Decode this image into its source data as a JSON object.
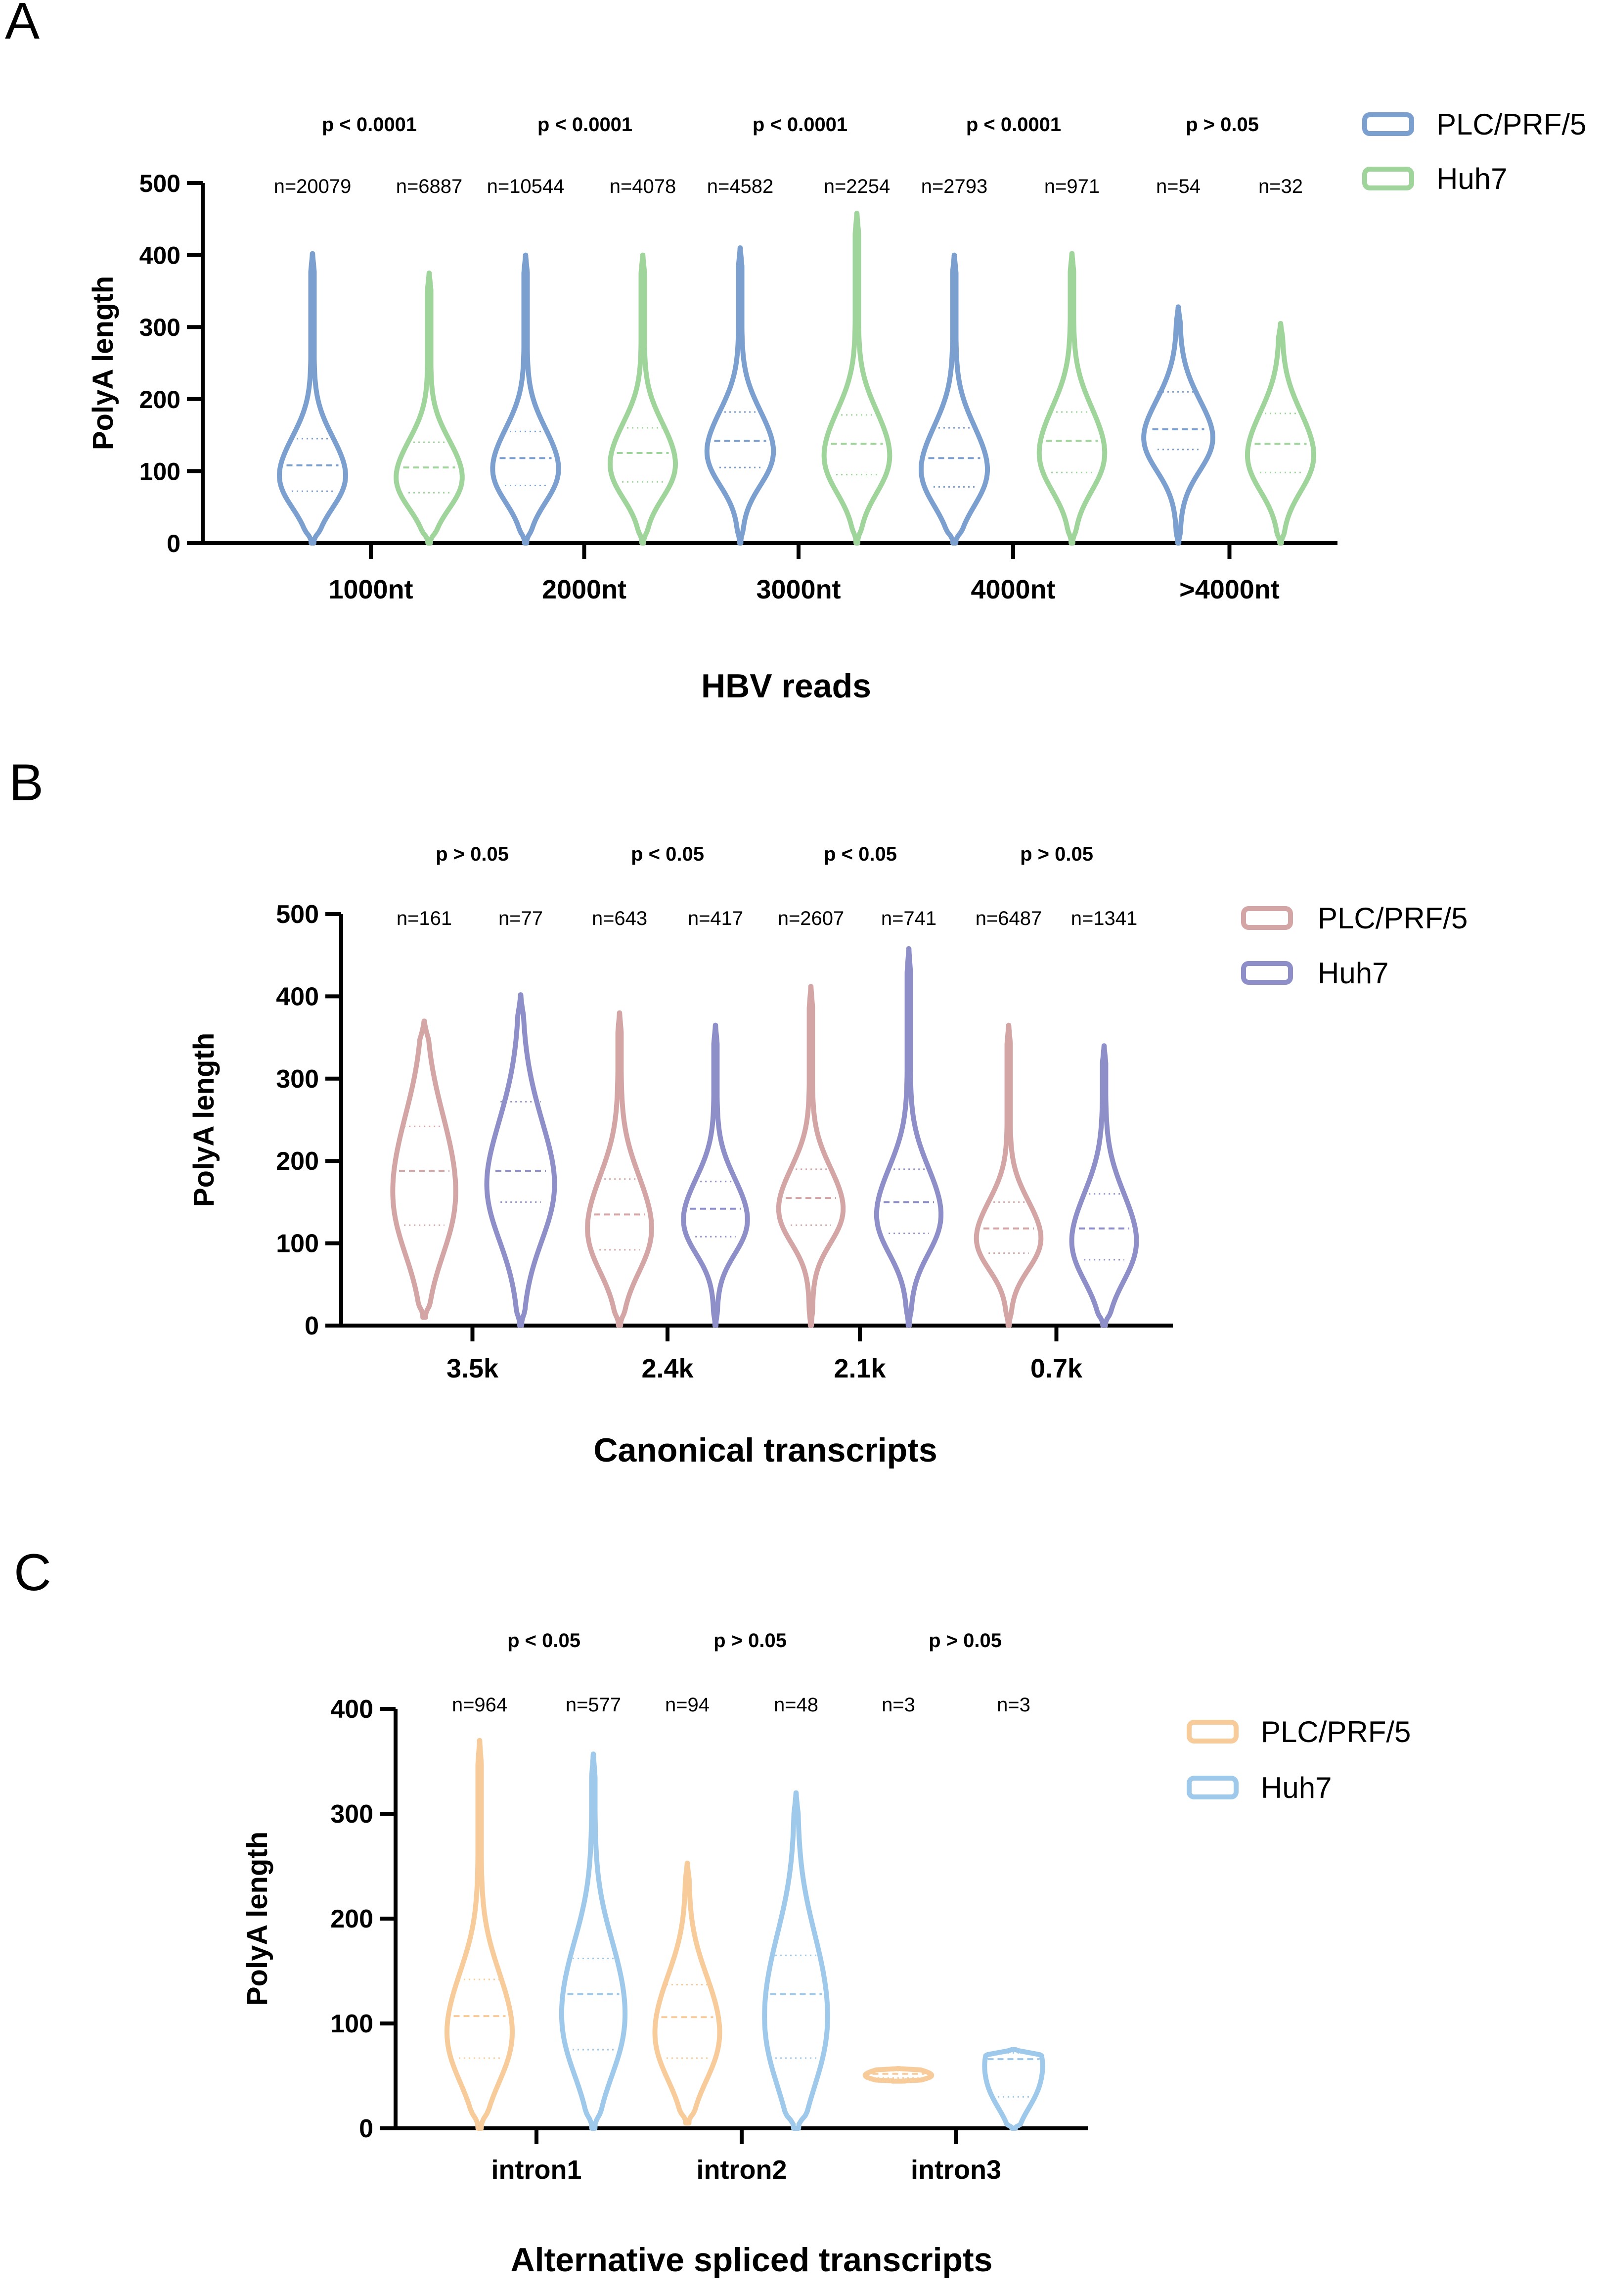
{
  "chart_data": [
    {
      "panel_letter": "A",
      "type": "violin",
      "xlabel": "HBV  reads",
      "ylabel": "PolyA length",
      "ylim": [
        0,
        500
      ],
      "yticks": [
        0,
        100,
        200,
        300,
        400,
        500
      ],
      "categories": [
        "1000nt",
        "2000nt",
        "3000nt",
        "4000nt",
        ">4000nt"
      ],
      "pvalues": [
        "p < 0.0001",
        "p < 0.0001",
        "p < 0.0001",
        "p < 0.0001",
        "p > 0.05"
      ],
      "legend_position": "top-right",
      "series": [
        {
          "name": "PLC/PRF/5",
          "color": "#7b9fcf",
          "counts": [
            "n=20079",
            "n=10544",
            "n=4582",
            "n=2793",
            "n=54"
          ],
          "medians": [
            108,
            118,
            142,
            118,
            158
          ],
          "q1": [
            72,
            80,
            105,
            78,
            130
          ],
          "q3": [
            145,
            155,
            182,
            160,
            210
          ],
          "max": [
            402,
            400,
            410,
            400,
            328
          ],
          "min": [
            0,
            0,
            0,
            0,
            0
          ]
        },
        {
          "name": "Huh7",
          "color": "#9fd49b",
          "counts": [
            "n=6887",
            "n=4078",
            "n=2254",
            "n=971",
            "n=32"
          ],
          "medians": [
            105,
            125,
            138,
            142,
            138
          ],
          "q1": [
            70,
            85,
            95,
            98,
            98
          ],
          "q3": [
            140,
            160,
            178,
            182,
            180
          ],
          "max": [
            375,
            400,
            458,
            402,
            305
          ],
          "min": [
            0,
            0,
            0,
            0,
            0
          ]
        }
      ]
    },
    {
      "panel_letter": "B",
      "type": "violin",
      "xlabel": "Canonical transcripts",
      "ylabel": "PolyA length",
      "ylim": [
        0,
        500
      ],
      "yticks": [
        0,
        100,
        200,
        300,
        400,
        500
      ],
      "categories": [
        "3.5k",
        "2.4k",
        "2.1k",
        "0.7k"
      ],
      "pvalues": [
        "p > 0.05",
        "p < 0.05",
        "p < 0.05",
        "p > 0.05"
      ],
      "legend_position": "top-right",
      "series": [
        {
          "name": "PLC/PRF/5",
          "color": "#d4a5a5",
          "counts": [
            "n=161",
            "n=643",
            "n=2607",
            "n=6487"
          ],
          "medians": [
            188,
            135,
            155,
            118
          ],
          "q1": [
            122,
            92,
            122,
            88
          ],
          "q3": [
            242,
            178,
            190,
            150
          ],
          "max": [
            370,
            380,
            412,
            365
          ],
          "min": [
            10,
            0,
            0,
            0
          ]
        },
        {
          "name": "Huh7",
          "color": "#8e8fc9",
          "counts": [
            "n=77",
            "n=417",
            "n=741",
            "n=1341"
          ],
          "medians": [
            188,
            142,
            150,
            118
          ],
          "q1": [
            150,
            108,
            112,
            80
          ],
          "q3": [
            272,
            175,
            190,
            160
          ],
          "max": [
            402,
            365,
            458,
            340
          ],
          "min": [
            0,
            0,
            0,
            0
          ]
        }
      ]
    },
    {
      "panel_letter": "C",
      "type": "violin",
      "xlabel": "Alternative spliced transcripts",
      "ylabel": "PolyA length",
      "ylim": [
        0,
        400
      ],
      "yticks": [
        0,
        100,
        200,
        300,
        400
      ],
      "categories": [
        "intron1",
        "intron2",
        "intron3"
      ],
      "pvalues": [
        "p < 0.05",
        "p > 0.05",
        "p > 0.05"
      ],
      "legend_position": "top-right",
      "series": [
        {
          "name": "PLC/PRF/5",
          "color": "#f7cb9a",
          "counts": [
            "n=964",
            "n=94",
            "n=3"
          ],
          "medians": [
            107,
            106,
            52
          ],
          "q1": [
            67,
            67,
            48
          ],
          "q3": [
            142,
            137,
            55
          ],
          "max": [
            370,
            253,
            57
          ],
          "min": [
            0,
            5,
            45
          ]
        },
        {
          "name": "Huh7",
          "color": "#9ec9ea",
          "counts": [
            "n=577",
            "n=48",
            "n=3"
          ],
          "medians": [
            128,
            128,
            66
          ],
          "q1": [
            75,
            67,
            30
          ],
          "q3": [
            162,
            165,
            72
          ],
          "max": [
            357,
            320,
            75
          ],
          "min": [
            0,
            0,
            0
          ]
        }
      ]
    }
  ]
}
